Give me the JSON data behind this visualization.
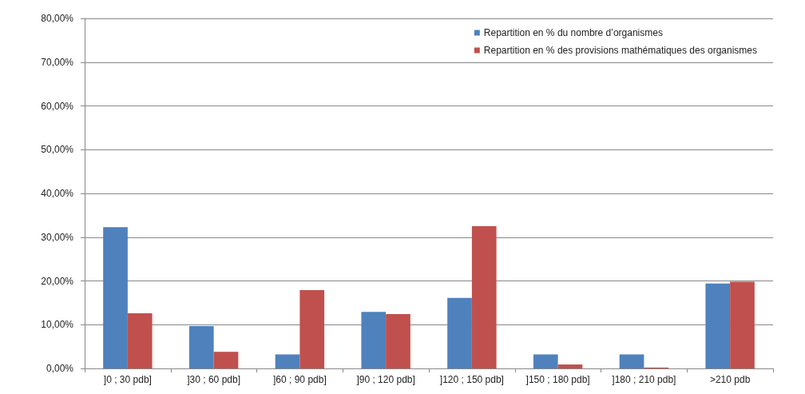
{
  "chart_data": {
    "type": "bar",
    "categories": [
      "]0 ; 30 pdb]",
      "]30 ; 60 pdb]",
      "]60 ; 90 pdb]",
      "]90 ; 120 pdb]",
      "]120 ; 150 pdb]",
      "]150 ; 180 pdb]",
      "]180 ; 210 pdb]",
      ">210 pdb"
    ],
    "series": [
      {
        "name": "Repartition en % du nombre d’organismes",
        "color": "#4f81bd",
        "values": [
          32.3,
          9.7,
          3.2,
          12.9,
          16.1,
          3.2,
          3.2,
          19.4
        ]
      },
      {
        "name": "Repartition en % des provisions mathématiques des organismes",
        "color": "#c0504d",
        "values": [
          12.6,
          3.8,
          17.9,
          12.4,
          32.5,
          0.9,
          0.2,
          19.8
        ]
      }
    ],
    "ylim": [
      0,
      80
    ],
    "yticks": [
      {
        "value": 0,
        "label": "0,00%"
      },
      {
        "value": 10,
        "label": "10,00%"
      },
      {
        "value": 20,
        "label": "20,00%"
      },
      {
        "value": 30,
        "label": "30,00%"
      },
      {
        "value": 40,
        "label": "40,00%"
      },
      {
        "value": 50,
        "label": "50,00%"
      },
      {
        "value": 60,
        "label": "60,00%"
      },
      {
        "value": 70,
        "label": "70,00%"
      },
      {
        "value": 80,
        "label": "80,00%"
      }
    ],
    "grid": "y",
    "legend": "top right"
  }
}
